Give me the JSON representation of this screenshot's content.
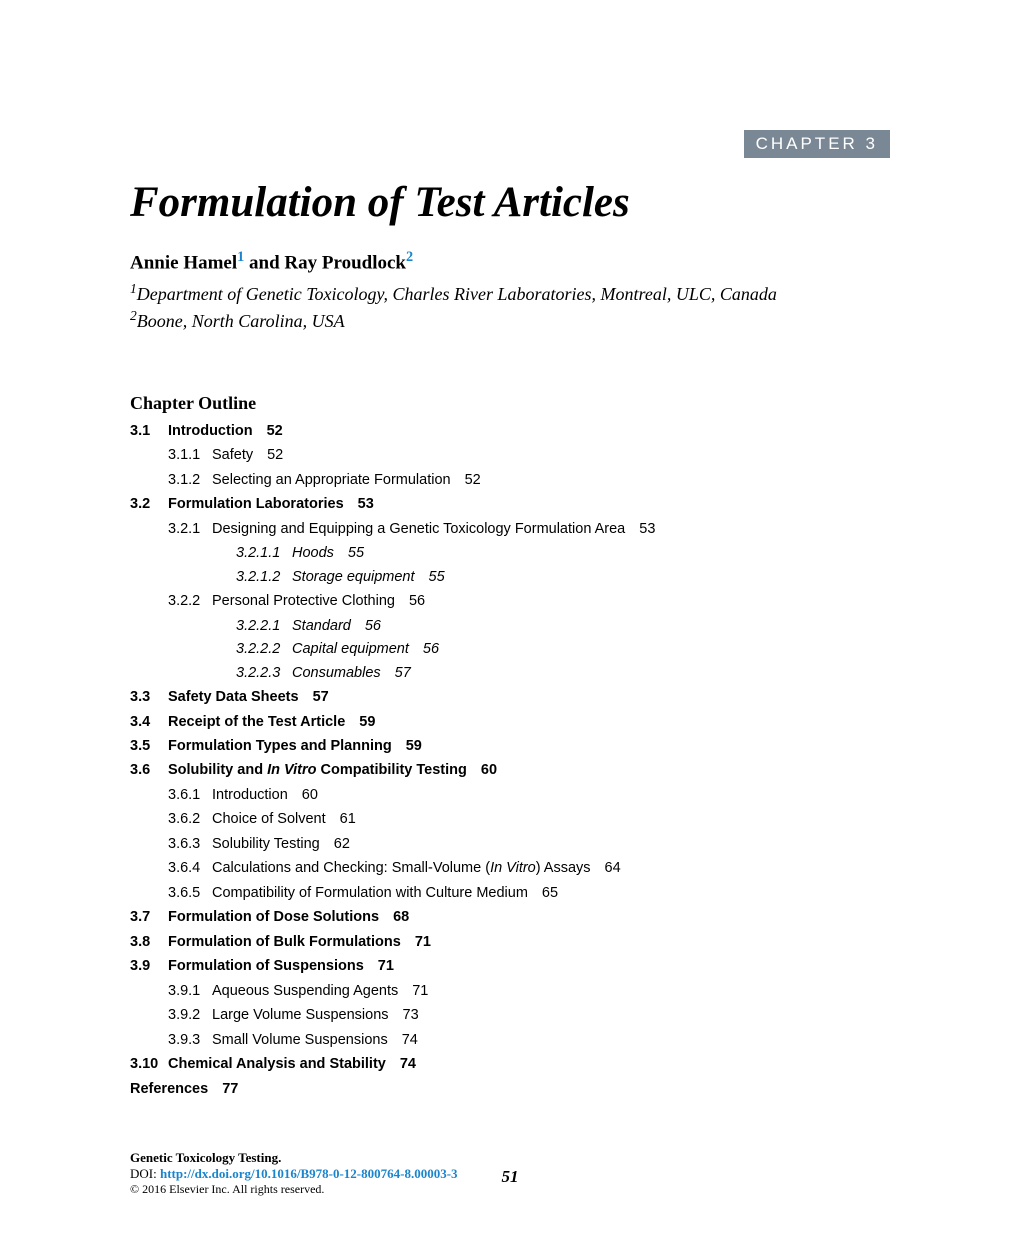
{
  "chapter_badge": "CHAPTER 3",
  "title": "Formulation of Test Articles",
  "author1": "Annie Hamel",
  "sup1": "1",
  "author_sep": " and ",
  "author2": "Ray Proudlock",
  "sup2": "2",
  "affil1_sup": "1",
  "affil1": "Department of Genetic Toxicology, Charles River Laboratories, Montreal, ULC, Canada",
  "affil2_sup": "2",
  "affil2": "Boone, North Carolina, USA",
  "outline_heading": "Chapter Outline",
  "toc": {
    "e1": {
      "num": "3.1",
      "label": "Introduction",
      "page": "52"
    },
    "e2": {
      "num": "3.1.1",
      "label": "Safety",
      "page": "52"
    },
    "e3": {
      "num": "3.1.2",
      "label": "Selecting an Appropriate Formulation",
      "page": "52"
    },
    "e4": {
      "num": "3.2",
      "label": "Formulation Laboratories",
      "page": "53"
    },
    "e5": {
      "num": "3.2.1",
      "label": "Designing and Equipping a Genetic Toxicology Formulation Area",
      "page": "53"
    },
    "e6": {
      "num": "3.2.1.1",
      "label": "Hoods",
      "page": "55"
    },
    "e7": {
      "num": "3.2.1.2",
      "label": "Storage equipment",
      "page": "55"
    },
    "e8": {
      "num": "3.2.2",
      "label": "Personal Protective Clothing",
      "page": "56"
    },
    "e9": {
      "num": "3.2.2.1",
      "label": "Standard",
      "page": "56"
    },
    "e10": {
      "num": "3.2.2.2",
      "label": "Capital equipment",
      "page": "56"
    },
    "e11": {
      "num": "3.2.2.3",
      "label": "Consumables",
      "page": "57"
    },
    "e12": {
      "num": "3.3",
      "label": "Safety Data Sheets",
      "page": "57"
    },
    "e13": {
      "num": "3.4",
      "label": "Receipt of the Test Article",
      "page": "59"
    },
    "e14": {
      "num": "3.5",
      "label": "Formulation Types and Planning",
      "page": "59"
    },
    "e15": {
      "num": "3.6",
      "label_pre": "Solubility and ",
      "label_em": "In Vitro",
      "label_post": " Compatibility Testing",
      "page": "60"
    },
    "e16": {
      "num": "3.6.1",
      "label": "Introduction",
      "page": "60"
    },
    "e17": {
      "num": "3.6.2",
      "label": "Choice of Solvent",
      "page": "61"
    },
    "e18": {
      "num": "3.6.3",
      "label": "Solubility Testing",
      "page": "62"
    },
    "e19": {
      "num": "3.6.4",
      "label_pre": "Calculations and Checking: Small-Volume (",
      "label_em": "In Vitro",
      "label_post": ") Assays",
      "page": "64"
    },
    "e20": {
      "num": "3.6.5",
      "label": "Compatibility of Formulation with Culture Medium",
      "page": "65"
    },
    "e21": {
      "num": "3.7",
      "label": "Formulation of Dose Solutions",
      "page": "68"
    },
    "e22": {
      "num": "3.8",
      "label": "Formulation of Bulk Formulations",
      "page": "71"
    },
    "e23": {
      "num": "3.9",
      "label": "Formulation of Suspensions",
      "page": "71"
    },
    "e24": {
      "num": "3.9.1",
      "label": "Aqueous Suspending Agents",
      "page": "71"
    },
    "e25": {
      "num": "3.9.2",
      "label": "Large Volume Suspensions",
      "page": "73"
    },
    "e26": {
      "num": "3.9.3",
      "label": "Small Volume Suspensions",
      "page": "74"
    },
    "e27": {
      "num": "3.10",
      "label": "Chemical Analysis and Stability",
      "page": "74"
    },
    "e28": {
      "num": "",
      "label": "References",
      "page": "77"
    }
  },
  "footer": {
    "book": "Genetic Toxicology Testing.",
    "doi_label": "DOI: ",
    "doi_url": "http://dx.doi.org/10.1016/B978-0-12-800764-8.00003-3",
    "copyright": "© 2016 Elsevier Inc. All rights reserved.",
    "page_number": "51"
  },
  "colors": {
    "badge_bg": "#7a8896",
    "badge_fg": "#ffffff",
    "link": "#1a85cc"
  }
}
